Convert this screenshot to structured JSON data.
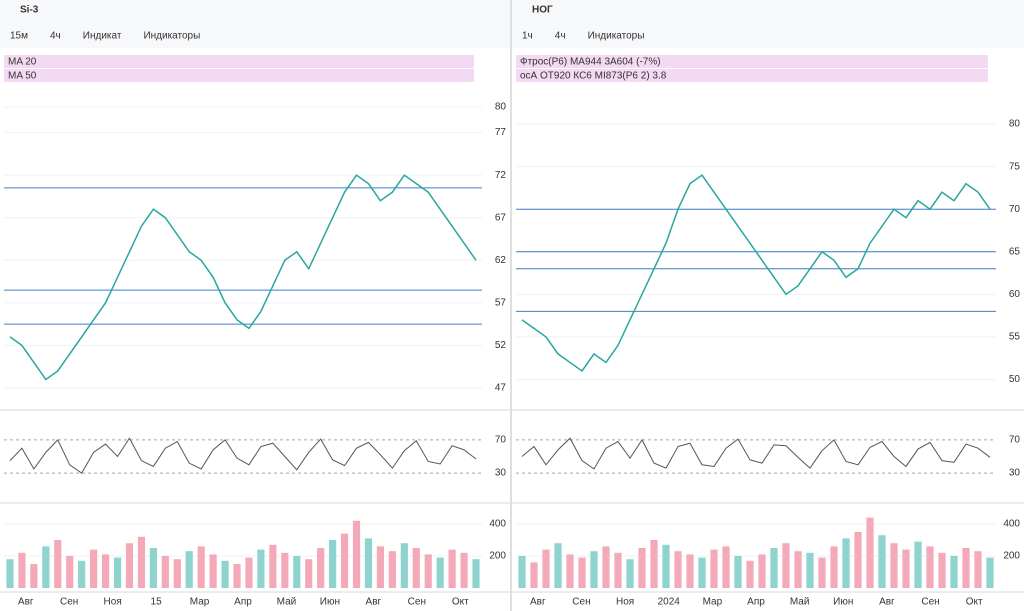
{
  "left": {
    "title": "Si-3",
    "toolbar": [
      "15м",
      "4ч",
      "Индикат",
      "Индикаторы"
    ],
    "legend": [
      "MA 20",
      "MA 50"
    ],
    "ylim": [
      45,
      82
    ],
    "yticks": [
      47,
      52,
      57,
      62,
      67,
      72,
      77,
      80
    ],
    "closes": [
      53,
      52,
      50,
      48,
      49,
      51,
      53,
      55,
      57,
      60,
      63,
      66,
      68,
      67,
      65,
      63,
      62,
      60,
      57,
      55,
      54,
      56,
      59,
      62,
      63,
      61,
      64,
      67,
      70,
      72,
      71,
      69,
      70,
      72,
      71,
      70,
      68,
      66,
      64,
      62
    ],
    "levels": [
      70.5,
      58.5,
      54.5
    ],
    "osc_ylim": [
      0,
      100
    ],
    "osc_ticks": [
      30,
      70
    ],
    "osc": [
      45,
      60,
      35,
      55,
      70,
      40,
      30,
      55,
      65,
      50,
      72,
      45,
      38,
      60,
      68,
      42,
      35,
      58,
      70,
      48,
      40,
      62,
      66,
      50,
      34,
      55,
      71,
      46,
      39,
      60,
      67,
      52,
      36,
      57,
      69,
      44,
      41,
      63,
      58,
      47
    ],
    "vol_ylim": [
      0,
      500
    ],
    "vol_ticks": [
      200,
      400
    ],
    "volume": [
      180,
      220,
      150,
      260,
      300,
      200,
      170,
      240,
      210,
      190,
      280,
      320,
      250,
      200,
      180,
      230,
      260,
      210,
      170,
      150,
      190,
      240,
      270,
      220,
      200,
      180,
      250,
      300,
      340,
      420,
      310,
      260,
      230,
      280,
      250,
      210,
      190,
      240,
      220,
      180
    ],
    "time": [
      "Авг",
      "Сен",
      "Ноя",
      "15",
      "Мар",
      "Апр",
      "Май",
      "Июн",
      "Авг",
      "Сен",
      "Окт"
    ]
  },
  "right": {
    "title": "НОГ",
    "toolbar": [
      "1ч",
      "4ч",
      "Индикаторы"
    ],
    "legend": [
      "Фтрос(P6) MA944 3A604 (-7%)",
      "осА ОТ920 КС6 MI873(P6 2) 3.8"
    ],
    "ylim": [
      47,
      84
    ],
    "yticks": [
      50,
      55,
      60,
      65,
      70,
      75,
      80
    ],
    "closes": [
      57,
      56,
      55,
      53,
      52,
      51,
      53,
      52,
      54,
      57,
      60,
      63,
      66,
      70,
      73,
      74,
      72,
      70,
      68,
      66,
      64,
      62,
      60,
      61,
      63,
      65,
      64,
      62,
      63,
      66,
      68,
      70,
      69,
      71,
      70,
      72,
      71,
      73,
      72,
      70
    ],
    "levels": [
      70,
      65,
      63,
      58
    ],
    "osc_ylim": [
      0,
      100
    ],
    "osc_ticks": [
      30,
      70
    ],
    "osc": [
      50,
      62,
      40,
      58,
      72,
      45,
      35,
      60,
      68,
      48,
      70,
      42,
      36,
      62,
      66,
      40,
      38,
      60,
      71,
      46,
      42,
      64,
      63,
      49,
      36,
      57,
      70,
      44,
      40,
      61,
      68,
      50,
      38,
      59,
      67,
      45,
      43,
      65,
      60,
      49
    ],
    "vol_ylim": [
      0,
      500
    ],
    "vol_ticks": [
      200,
      400
    ],
    "volume": [
      200,
      160,
      240,
      280,
      210,
      190,
      230,
      260,
      220,
      180,
      250,
      300,
      270,
      230,
      210,
      190,
      240,
      260,
      200,
      170,
      210,
      250,
      280,
      230,
      220,
      190,
      260,
      310,
      350,
      440,
      330,
      280,
      240,
      290,
      260,
      220,
      200,
      250,
      230,
      190
    ],
    "time": [
      "Авг",
      "Сен",
      "Ноя",
      "2024",
      "Мар",
      "Апр",
      "Май",
      "Июн",
      "Авг",
      "Сен",
      "Окт"
    ]
  }
}
